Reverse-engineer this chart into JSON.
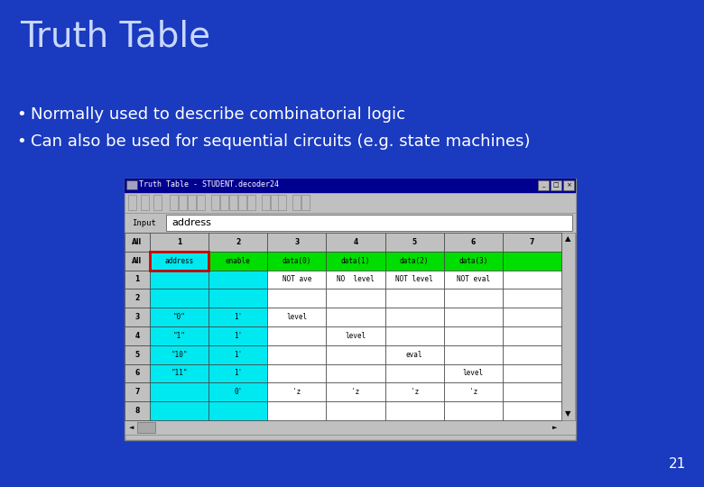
{
  "title": "Truth Table",
  "bullet1": "Normally used to describe combinatorial logic",
  "bullet2": "Can also be used for sequential circuits (e.g. state machines)",
  "page_number": "21",
  "bg_color": "#1a3abf",
  "title_color": "#c8d8ff",
  "text_color": "#ffffff",
  "window_title": "Truth Table - STUDENT.decoder24",
  "address_label": "address",
  "cyan": "#00e8f0",
  "green": "#00dd00",
  "red_border": "#cc0000",
  "window_bg": "#c0c0c0",
  "cell_bg": "#ffffff",
  "titlebar_bg": "#000090",
  "row_label_bg": "#c8c8c8",
  "col_header_bg": "#c8c8c8"
}
